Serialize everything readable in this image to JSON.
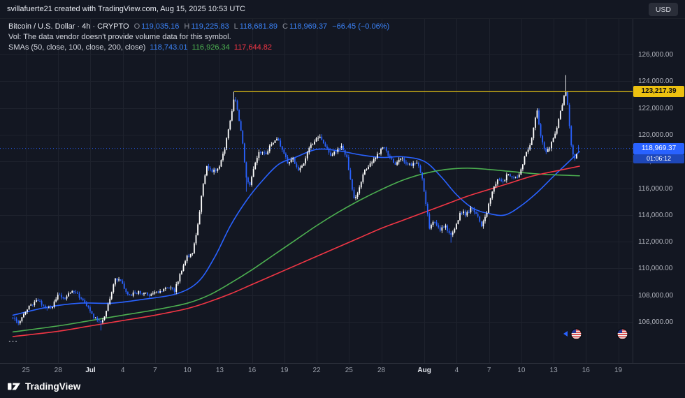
{
  "attribution": "svillafuerte21 created with TradingView.com, Aug 15, 2025 10:53 UTC",
  "currency_button": "USD",
  "legend": {
    "title": "Bitcoin / U.S. Dollar · 4h · CRYPTO",
    "ohlc": {
      "o_label": "O",
      "o": "119,035.16",
      "h_label": "H",
      "h": "119,225.83",
      "l_label": "L",
      "l": "118,681.89",
      "c_label": "C",
      "c": "118,969.37",
      "change": "−66.45 (−0.06%)"
    },
    "volume_note": "Vol: The data vendor doesn't provide volume data for this symbol.",
    "sma_label": "SMAs (50, close, 100, close, 200, close)",
    "sma_values": {
      "sma50": "118,743.01",
      "sma100": "116,926.34",
      "sma200": "117,644.82"
    },
    "more": "..."
  },
  "price_scale": {
    "yellow_label": "123,217.39",
    "current_label": "118,969.37",
    "countdown": "01:06:12"
  },
  "footer": {
    "brand": "TradingView"
  },
  "chart_data": {
    "type": "candlestick",
    "title": "Bitcoin / U.S. Dollar · 4h · CRYPTO",
    "interval": "4h",
    "x_unit": "days since Jun 25, 2025",
    "grid": true,
    "ylim": [
      102900,
      128700
    ],
    "y_ticks": [
      {
        "value": 126000,
        "label": "126,000.00"
      },
      {
        "value": 124000,
        "label": "124,000.00"
      },
      {
        "value": 122000,
        "label": "122,000.00"
      },
      {
        "value": 120000,
        "label": "120,000.00"
      },
      {
        "value": 118000,
        "label": "118,000.00"
      },
      {
        "value": 116000,
        "label": "116,000.00"
      },
      {
        "value": 114000,
        "label": "114,000.00"
      },
      {
        "value": 112000,
        "label": "112,000.00"
      },
      {
        "value": 110000,
        "label": "110,000.00"
      },
      {
        "value": 108000,
        "label": "108,000.00"
      },
      {
        "value": 106000,
        "label": "106,000.00"
      }
    ],
    "x_ticks": [
      {
        "label": "25",
        "day": 0
      },
      {
        "label": "28",
        "day": 3
      },
      {
        "label": "Jul",
        "day": 6,
        "major": true
      },
      {
        "label": "4",
        "day": 9
      },
      {
        "label": "7",
        "day": 12
      },
      {
        "label": "10",
        "day": 15
      },
      {
        "label": "13",
        "day": 18
      },
      {
        "label": "16",
        "day": 21
      },
      {
        "label": "19",
        "day": 24
      },
      {
        "label": "22",
        "day": 27
      },
      {
        "label": "25",
        "day": 30
      },
      {
        "label": "28",
        "day": 33
      },
      {
        "label": "Aug",
        "day": 37,
        "major": true
      },
      {
        "label": "4",
        "day": 40
      },
      {
        "label": "7",
        "day": 43
      },
      {
        "label": "10",
        "day": 46
      },
      {
        "label": "13",
        "day": 49
      },
      {
        "label": "16",
        "day": 52
      },
      {
        "label": "19",
        "day": 55
      }
    ],
    "price_path": [
      [
        -1.2,
        106300
      ],
      [
        -0.7,
        105800
      ],
      [
        0,
        106900
      ],
      [
        0.7,
        107400
      ],
      [
        1.2,
        107700
      ],
      [
        1.8,
        107000
      ],
      [
        2.5,
        107200
      ],
      [
        3.0,
        108100
      ],
      [
        3.6,
        107800
      ],
      [
        4.3,
        108300
      ],
      [
        5.0,
        107900
      ],
      [
        5.6,
        107300
      ],
      [
        6.3,
        106400
      ],
      [
        7.0,
        105900
      ],
      [
        7.5,
        106900
      ],
      [
        8.3,
        109300
      ],
      [
        8.8,
        109000
      ],
      [
        9.5,
        108000
      ],
      [
        10.5,
        108200
      ],
      [
        11.5,
        108000
      ],
      [
        12.5,
        108300
      ],
      [
        13.2,
        108600
      ],
      [
        13.8,
        108300
      ],
      [
        14.4,
        109800
      ],
      [
        15.0,
        110900
      ],
      [
        15.5,
        111200
      ],
      [
        16.0,
        113400
      ],
      [
        16.4,
        116100
      ],
      [
        16.8,
        117600
      ],
      [
        17.3,
        117200
      ],
      [
        18.0,
        117600
      ],
      [
        18.5,
        119100
      ],
      [
        19.0,
        121200
      ],
      [
        19.33,
        122900
      ],
      [
        19.7,
        121600
      ],
      [
        20.1,
        119500
      ],
      [
        20.5,
        116600
      ],
      [
        20.8,
        116300
      ],
      [
        21.2,
        117800
      ],
      [
        21.7,
        118800
      ],
      [
        22.3,
        118500
      ],
      [
        22.8,
        119400
      ],
      [
        23.3,
        119700
      ],
      [
        23.8,
        118900
      ],
      [
        24.3,
        117900
      ],
      [
        24.8,
        118200
      ],
      [
        25.3,
        117300
      ],
      [
        25.8,
        117900
      ],
      [
        26.3,
        118900
      ],
      [
        26.8,
        119600
      ],
      [
        27.3,
        119900
      ],
      [
        27.8,
        119200
      ],
      [
        28.3,
        118500
      ],
      [
        28.8,
        118800
      ],
      [
        29.3,
        119100
      ],
      [
        29.8,
        118200
      ],
      [
        30.2,
        116300
      ],
      [
        30.5,
        115100
      ],
      [
        30.9,
        115900
      ],
      [
        31.4,
        117200
      ],
      [
        32.0,
        117800
      ],
      [
        32.6,
        118400
      ],
      [
        33.2,
        119200
      ],
      [
        33.7,
        118400
      ],
      [
        34.3,
        117700
      ],
      [
        34.8,
        118300
      ],
      [
        35.3,
        117900
      ],
      [
        35.8,
        117600
      ],
      [
        36.3,
        118000
      ],
      [
        36.8,
        116600
      ],
      [
        37.2,
        114500
      ],
      [
        37.5,
        112900
      ],
      [
        37.9,
        113600
      ],
      [
        38.4,
        112900
      ],
      [
        38.9,
        113200
      ],
      [
        39.4,
        112400
      ],
      [
        39.9,
        113200
      ],
      [
        40.4,
        114300
      ],
      [
        40.9,
        114000
      ],
      [
        41.4,
        114600
      ],
      [
        41.9,
        113900
      ],
      [
        42.3,
        113200
      ],
      [
        42.8,
        114200
      ],
      [
        43.3,
        115800
      ],
      [
        43.8,
        116700
      ],
      [
        44.3,
        116500
      ],
      [
        44.8,
        117100
      ],
      [
        45.3,
        116800
      ],
      [
        45.8,
        117000
      ],
      [
        46.3,
        118300
      ],
      [
        46.8,
        119200
      ],
      [
        47.2,
        120800
      ],
      [
        47.45,
        121900
      ],
      [
        47.8,
        119900
      ],
      [
        48.2,
        118700
      ],
      [
        48.6,
        118950
      ],
      [
        49.0,
        119800
      ],
      [
        49.4,
        120900
      ],
      [
        49.8,
        122300
      ],
      [
        50.1,
        123600
      ],
      [
        50.35,
        122000
      ],
      [
        50.6,
        119300
      ],
      [
        50.9,
        118100
      ],
      [
        51.15,
        118700
      ],
      [
        51.4,
        118969.37
      ]
    ],
    "pins": [
      {
        "day": 19.33,
        "high": 123217.39
      },
      {
        "day": 50.1,
        "high": 124457
      },
      {
        "day": 39.4,
        "low": 111924
      },
      {
        "day": 20.5,
        "low": 115735
      },
      {
        "day": 7.0,
        "low": 105358
      },
      {
        "day": 51.4,
        "open": 119035.16,
        "high": 119225.83,
        "low": 118681.89,
        "close": 118969.37
      }
    ],
    "smas": [
      {
        "name": "SMA (50, close)",
        "color": "#2962ff",
        "last_value": 118743.01,
        "points": [
          [
            -1.2,
            106500
          ],
          [
            2,
            107100
          ],
          [
            5,
            107400
          ],
          [
            8,
            107400
          ],
          [
            11,
            107700
          ],
          [
            14,
            108100
          ],
          [
            16,
            109000
          ],
          [
            17.5,
            110800
          ],
          [
            19,
            113200
          ],
          [
            20.5,
            115100
          ],
          [
            22,
            116600
          ],
          [
            23.5,
            117800
          ],
          [
            25,
            118300
          ],
          [
            27,
            118900
          ],
          [
            29,
            118800
          ],
          [
            31,
            118500
          ],
          [
            33,
            118300
          ],
          [
            35,
            118350
          ],
          [
            37,
            118000
          ],
          [
            38.5,
            116900
          ],
          [
            40,
            115500
          ],
          [
            41.5,
            114500
          ],
          [
            43,
            114100
          ],
          [
            44.5,
            114000
          ],
          [
            46,
            114700
          ],
          [
            47.5,
            115700
          ],
          [
            49,
            116900
          ],
          [
            50.3,
            117900
          ],
          [
            51.4,
            118743.01
          ]
        ]
      },
      {
        "name": "SMA (100, close)",
        "color": "#4caf50",
        "last_value": 116926.34,
        "points": [
          [
            -1.2,
            105250
          ],
          [
            3,
            105700
          ],
          [
            6,
            106100
          ],
          [
            9,
            106500
          ],
          [
            12,
            106900
          ],
          [
            15,
            107400
          ],
          [
            17,
            108000
          ],
          [
            19,
            108900
          ],
          [
            21,
            109900
          ],
          [
            23,
            111000
          ],
          [
            25,
            112100
          ],
          [
            27,
            113200
          ],
          [
            29,
            114200
          ],
          [
            31,
            115100
          ],
          [
            33,
            115900
          ],
          [
            35,
            116600
          ],
          [
            37,
            117100
          ],
          [
            39,
            117400
          ],
          [
            41,
            117500
          ],
          [
            43,
            117400
          ],
          [
            45,
            117250
          ],
          [
            47,
            117100
          ],
          [
            49,
            117000
          ],
          [
            51.4,
            116926.34
          ]
        ]
      },
      {
        "name": "SMA (200, close)",
        "color": "#f23645",
        "last_value": 117644.82,
        "points": [
          [
            -1.2,
            104900
          ],
          [
            3,
            105300
          ],
          [
            6,
            105700
          ],
          [
            9,
            106100
          ],
          [
            12,
            106500
          ],
          [
            15,
            107000
          ],
          [
            17,
            107500
          ],
          [
            19,
            108100
          ],
          [
            21,
            108800
          ],
          [
            23,
            109500
          ],
          [
            25,
            110200
          ],
          [
            27,
            110900
          ],
          [
            29,
            111600
          ],
          [
            31,
            112300
          ],
          [
            33,
            113000
          ],
          [
            35,
            113600
          ],
          [
            37,
            114200
          ],
          [
            39,
            114800
          ],
          [
            41,
            115400
          ],
          [
            43,
            115900
          ],
          [
            45,
            116400
          ],
          [
            47,
            116900
          ],
          [
            49,
            117250
          ],
          [
            51.4,
            117644.82
          ]
        ]
      }
    ],
    "horizontal_line": {
      "price": 123217.39,
      "start_day": 19.33,
      "color": "#c5a816"
    },
    "current_price": 118969.37,
    "last_candle": {
      "open": 119035.16,
      "high": 119225.83,
      "low": 118681.89,
      "close": 118969.37,
      "change": -66.45,
      "change_pct": -0.06
    },
    "colors": {
      "up": "#ffffff",
      "down": "#2962ff",
      "grid": "#1e222d",
      "bg": "#131722"
    }
  }
}
